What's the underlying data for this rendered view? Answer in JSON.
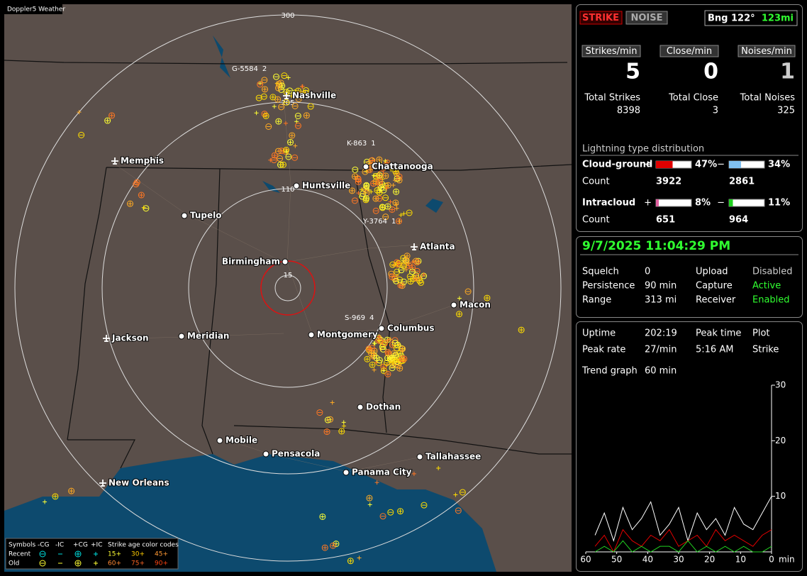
{
  "window": {
    "title": "Doppler5 Weather"
  },
  "map": {
    "range_rings": [
      "300",
      "205",
      "110",
      "15"
    ],
    "storms": [
      {
        "id": "G-5584",
        "count": 2
      },
      {
        "id": "K-863",
        "count": 1
      },
      {
        "id": "Y-3764",
        "count": 1
      },
      {
        "id": "S-969",
        "count": 4
      }
    ],
    "cities": [
      "Nashville",
      "Memphis",
      "Chattanooga",
      "Huntsville",
      "Tupelo",
      "Atlanta",
      "Birmingham",
      "Macon",
      "Jackson",
      "Meridian",
      "Montgomery",
      "Columbus",
      "Dothan",
      "Mobile",
      "Pensacola",
      "Tallahassee",
      "Panama City",
      "New Orleans"
    ],
    "legend": {
      "symbols": "Symbols",
      "types": [
        "-CG",
        "-IC",
        "+CG",
        "+IC"
      ],
      "age_title": "Strike age color codes",
      "rows": [
        {
          "label": "Recent",
          "ages": [
            "15+",
            "30+",
            "45+"
          ]
        },
        {
          "label": "Old",
          "ages": [
            "60+",
            "75+",
            "90+"
          ]
        }
      ]
    }
  },
  "panel": {
    "modes": [
      "STRIKE",
      "NOISE"
    ],
    "bearing": "Bng 122°",
    "distance": "123mi",
    "rates": [
      {
        "label": "Strikes/min",
        "value": 5
      },
      {
        "label": "Close/min",
        "value": 0
      },
      {
        "label": "Noises/min",
        "value": 1
      }
    ],
    "totals": [
      {
        "label": "Total Strikes",
        "value": 8398
      },
      {
        "label": "Total Close",
        "value": 3
      },
      {
        "label": "Total Noises",
        "value": 325
      }
    ],
    "distribution": {
      "title": "Lightning type distribution",
      "count_label": "Count",
      "types": [
        {
          "label": "Cloud-ground",
          "parts": [
            {
              "sign": "+",
              "percent": 47,
              "percent_label": "47%",
              "count": 3922,
              "color": "#e00000"
            },
            {
              "sign": "−",
              "percent": 34,
              "percent_label": "34%",
              "count": 2861,
              "color": "#80c0f0"
            }
          ]
        },
        {
          "label": "Intracloud",
          "parts": [
            {
              "sign": "+",
              "percent": 8,
              "percent_label": "8%",
              "count": 651,
              "color": "#e060a0"
            },
            {
              "sign": "−",
              "percent": 11,
              "percent_label": "11%",
              "count": 964,
              "color": "#20d020"
            }
          ]
        }
      ]
    },
    "clock": "9/7/2025 11:04:29 PM",
    "settings": [
      {
        "label": "Squelch",
        "value": "0"
      },
      {
        "label": "Upload",
        "value": "Disabled"
      },
      {
        "label": "Persistence",
        "value": "90 min"
      },
      {
        "label": "Capture",
        "value": "Active"
      },
      {
        "label": "Range",
        "value": "313 mi"
      },
      {
        "label": "Receiver",
        "value": "Enabled"
      }
    ],
    "uptime": {
      "label": "Uptime",
      "value": "202:19"
    },
    "peak_rate": {
      "label": "Peak rate",
      "value": "27/min"
    },
    "peak_time": {
      "label": "Peak time",
      "value": "5:16 AM"
    },
    "plot": {
      "label": "Plot",
      "value": "Strike"
    },
    "trend_graph": {
      "label": "Trend graph",
      "span": "60 min",
      "ylim": [
        0,
        30
      ],
      "yticks": [
        10,
        20,
        30
      ],
      "xlim": [
        60,
        0
      ],
      "xticks": [
        60,
        50,
        40,
        30,
        20,
        10,
        0
      ],
      "x_unit": "min",
      "x": [
        57,
        54,
        51,
        48,
        45,
        42,
        39,
        36,
        33,
        30,
        27,
        24,
        21,
        18,
        15,
        12,
        9,
        6,
        3,
        0
      ],
      "series": [
        {
          "color": "#ffffff",
          "values": [
            3,
            7,
            2,
            8,
            4,
            6,
            9,
            3,
            5,
            8,
            2,
            7,
            4,
            6,
            3,
            8,
            5,
            4,
            7,
            10
          ]
        },
        {
          "color": "#e00000",
          "values": [
            1,
            3,
            0,
            4,
            2,
            1,
            3,
            2,
            4,
            1,
            2,
            3,
            1,
            4,
            2,
            3,
            2,
            1,
            3,
            4
          ]
        },
        {
          "color": "#20d020",
          "values": [
            0,
            1,
            0,
            2,
            0,
            1,
            0,
            1,
            1,
            0,
            2,
            0,
            1,
            0,
            1,
            0,
            1,
            0,
            0,
            1
          ]
        }
      ]
    }
  }
}
